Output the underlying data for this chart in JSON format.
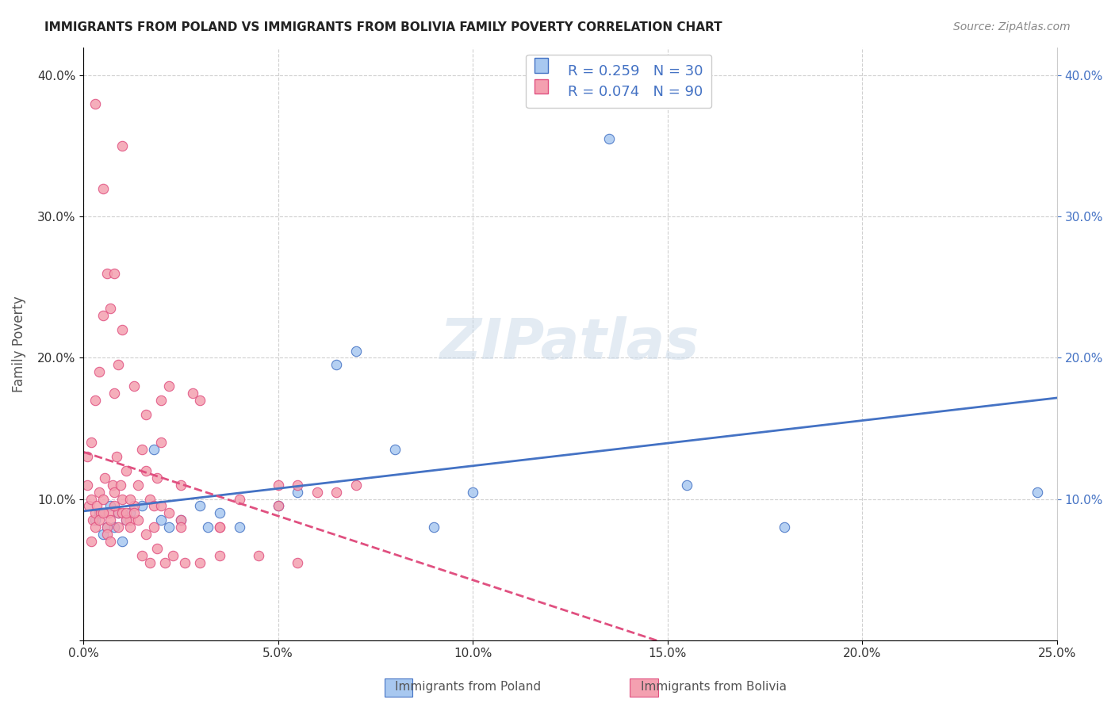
{
  "title": "IMMIGRANTS FROM POLAND VS IMMIGRANTS FROM BOLIVIA FAMILY POVERTY CORRELATION CHART",
  "source": "Source: ZipAtlas.com",
  "xlabel_bottom": "",
  "ylabel": "Family Poverty",
  "x_tick_labels": [
    "0.0%",
    "5.0%",
    "10.0%",
    "15.0%",
    "20.0%",
    "25.0%"
  ],
  "x_tick_values": [
    0.0,
    5.0,
    10.0,
    15.0,
    20.0,
    25.0
  ],
  "y_tick_labels_left": [
    "",
    "10.0%",
    "20.0%",
    "30.0%",
    "40.0%"
  ],
  "y_tick_labels_right": [
    "10.0%",
    "20.0%",
    "30.0%",
    "40.0%"
  ],
  "y_tick_values": [
    0,
    10,
    20,
    30,
    40
  ],
  "xlim": [
    0,
    25
  ],
  "ylim": [
    0,
    42
  ],
  "legend_label_poland": "Immigrants from Poland",
  "legend_label_bolivia": "Immigrants from Bolivia",
  "legend_R_poland": "R = 0.259",
  "legend_N_poland": "N = 30",
  "legend_R_bolivia": "R = 0.074",
  "legend_N_bolivia": "N = 90",
  "color_poland": "#a8c8f0",
  "color_poland_line": "#4472c4",
  "color_bolivia": "#f4a0b0",
  "color_bolivia_line": "#e05080",
  "color_bolivia_trend_dashed": "#f4a0b0",
  "background_color": "#ffffff",
  "grid_color": "#d0d0d0",
  "watermark_color": "#c8d8e8",
  "poland_x": [
    0.3,
    0.4,
    0.5,
    0.6,
    0.7,
    0.8,
    0.9,
    1.0,
    1.1,
    1.2,
    1.5,
    1.8,
    2.0,
    2.2,
    2.5,
    3.0,
    3.2,
    3.5,
    4.0,
    5.0,
    5.5,
    6.5,
    7.0,
    8.0,
    9.0,
    10.0,
    13.5,
    15.5,
    18.0,
    24.5
  ],
  "poland_y": [
    8.5,
    9.0,
    7.5,
    8.0,
    9.5,
    8.0,
    9.0,
    7.0,
    8.5,
    9.0,
    9.5,
    13.5,
    8.5,
    8.0,
    8.5,
    9.5,
    8.0,
    9.0,
    8.0,
    9.5,
    10.5,
    19.5,
    20.5,
    13.5,
    8.0,
    10.5,
    35.5,
    11.0,
    8.0,
    10.5
  ],
  "bolivia_x": [
    0.1,
    0.15,
    0.2,
    0.25,
    0.3,
    0.35,
    0.4,
    0.45,
    0.5,
    0.55,
    0.6,
    0.65,
    0.7,
    0.75,
    0.8,
    0.85,
    0.9,
    0.95,
    1.0,
    1.1,
    1.2,
    1.3,
    1.4,
    1.5,
    1.6,
    1.7,
    1.8,
    1.9,
    2.0,
    2.2,
    2.5,
    2.8,
    3.0,
    3.5,
    4.0,
    5.0,
    5.5,
    6.0,
    6.5,
    7.0,
    0.2,
    0.3,
    0.4,
    0.5,
    0.6,
    0.7,
    0.8,
    0.9,
    1.0,
    1.1,
    1.2,
    1.4,
    1.6,
    1.8,
    2.0,
    2.2,
    2.5,
    0.1,
    0.2,
    0.3,
    0.4,
    0.5,
    0.6,
    0.7,
    0.8,
    0.9,
    1.0,
    1.1,
    1.2,
    1.3,
    1.5,
    1.7,
    1.9,
    2.1,
    2.3,
    2.6,
    3.0,
    3.5,
    4.5,
    5.5,
    0.3,
    0.5,
    0.8,
    1.0,
    1.3,
    1.6,
    2.0,
    2.5,
    3.5,
    5.0
  ],
  "bolivia_y": [
    11.0,
    9.5,
    10.0,
    8.5,
    9.0,
    9.5,
    10.5,
    9.0,
    10.0,
    11.5,
    8.0,
    9.0,
    8.5,
    11.0,
    10.5,
    13.0,
    9.0,
    11.0,
    10.0,
    12.0,
    8.5,
    9.5,
    11.0,
    13.5,
    12.0,
    10.0,
    9.5,
    11.5,
    17.0,
    18.0,
    8.5,
    17.5,
    17.0,
    8.0,
    10.0,
    9.5,
    11.0,
    10.5,
    10.5,
    11.0,
    7.0,
    8.0,
    8.5,
    9.0,
    7.5,
    7.0,
    9.5,
    8.0,
    9.0,
    8.5,
    10.0,
    8.5,
    7.5,
    8.0,
    9.5,
    9.0,
    8.0,
    13.0,
    14.0,
    17.0,
    19.0,
    23.0,
    26.0,
    23.5,
    17.5,
    19.5,
    35.0,
    9.0,
    8.0,
    9.0,
    6.0,
    5.5,
    6.5,
    5.5,
    6.0,
    5.5,
    5.5,
    6.0,
    6.0,
    5.5,
    38.0,
    32.0,
    26.0,
    22.0,
    18.0,
    16.0,
    14.0,
    11.0,
    8.0,
    11.0
  ]
}
